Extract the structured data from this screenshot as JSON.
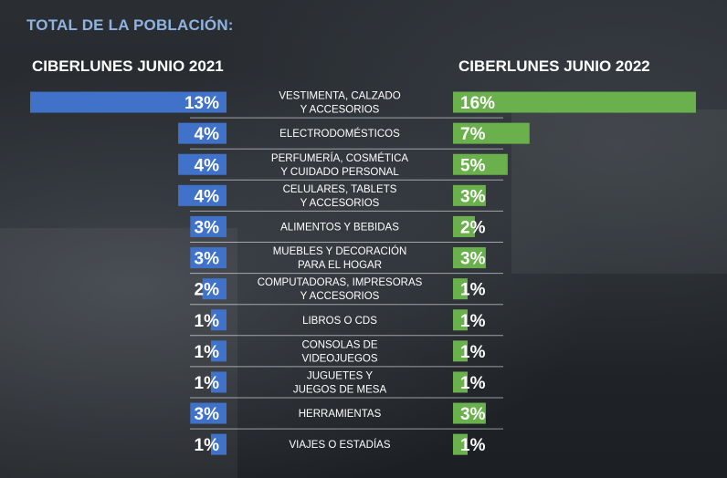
{
  "heading": "TOTAL DE LA POBLACIÓN:",
  "chart_data": {
    "type": "bar",
    "orientation": "horizontal-butterfly",
    "categories": [
      [
        "VESTIMENTA, CALZADO",
        "Y ACCESORIOS"
      ],
      [
        "ELECTRODOMÉSTICOS"
      ],
      [
        "PERFUMERÍA, COSMÉTICA",
        "Y CUIDADO PERSONAL"
      ],
      [
        "CELULARES, TABLETS",
        "Y ACCESORIOS"
      ],
      [
        "ALIMENTOS Y BEBIDAS"
      ],
      [
        "MUEBLES Y DECORACIÓN",
        "PARA EL HOGAR"
      ],
      [
        "COMPUTADORAS, IMPRESORAS",
        "Y ACCESORIOS"
      ],
      [
        "LIBROS O CDS"
      ],
      [
        "CONSOLAS DE",
        "VIDEOJUEGOS"
      ],
      [
        "JUGUETES Y",
        "JUEGOS DE MESA"
      ],
      [
        "HERRAMIENTAS"
      ],
      [
        "VIAJES O ESTADÍAS"
      ]
    ],
    "series": [
      {
        "name": "CIBERLUNES JUNIO 2021",
        "color": "#3f72c8",
        "values": [
          13,
          4,
          4,
          4,
          3,
          3,
          2,
          1,
          1,
          1,
          3,
          1
        ],
        "labels": [
          "13%",
          "4%",
          "4%",
          "4%",
          "3%",
          "3%",
          "2%",
          "1%",
          "1%",
          "1%",
          "3%",
          "1%"
        ]
      },
      {
        "name": "CIBERLUNES JUNIO 2022",
        "color": "#6ab04c",
        "values": [
          16,
          7,
          5,
          3,
          2,
          3,
          1,
          1,
          1,
          1,
          3,
          1
        ],
        "labels": [
          "16%",
          "7%",
          "5%",
          "3%",
          "2%",
          "3%",
          "1%",
          "1%",
          "1%",
          "1%",
          "3%",
          "1%"
        ]
      }
    ],
    "xlim": [
      0,
      16
    ],
    "grid": false,
    "legend": "top"
  }
}
